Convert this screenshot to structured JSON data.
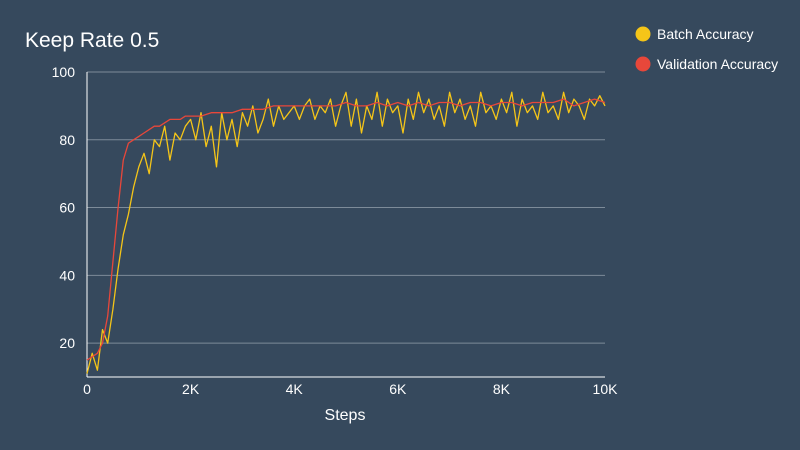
{
  "chart_data": {
    "type": "line",
    "title": "Keep Rate 0.5",
    "xlabel": "Steps",
    "ylabel": "",
    "xlim": [
      0,
      10000
    ],
    "ylim": [
      10,
      100
    ],
    "x_ticks": [
      {
        "value": 0,
        "label": "0"
      },
      {
        "value": 2000,
        "label": "2K"
      },
      {
        "value": 4000,
        "label": "4K"
      },
      {
        "value": 6000,
        "label": "6K"
      },
      {
        "value": 8000,
        "label": "8K"
      },
      {
        "value": 10000,
        "label": "10K"
      }
    ],
    "y_ticks": [
      {
        "value": 20,
        "label": "20"
      },
      {
        "value": 40,
        "label": "40"
      },
      {
        "value": 60,
        "label": "60"
      },
      {
        "value": 80,
        "label": "80"
      },
      {
        "value": 100,
        "label": "100"
      }
    ],
    "grid": "horizontal",
    "legend_position": "top-right",
    "series": [
      {
        "name": "Batch Accuracy",
        "color": "#f5c518",
        "x": [
          0,
          100,
          200,
          300,
          400,
          500,
          600,
          700,
          800,
          900,
          1000,
          1100,
          1200,
          1300,
          1400,
          1500,
          1600,
          1700,
          1800,
          1900,
          2000,
          2100,
          2200,
          2300,
          2400,
          2500,
          2600,
          2700,
          2800,
          2900,
          3000,
          3100,
          3200,
          3300,
          3400,
          3500,
          3600,
          3700,
          3800,
          3900,
          4000,
          4100,
          4200,
          4300,
          4400,
          4500,
          4600,
          4700,
          4800,
          4900,
          5000,
          5100,
          5200,
          5300,
          5400,
          5500,
          5600,
          5700,
          5800,
          5900,
          6000,
          6100,
          6200,
          6300,
          6400,
          6500,
          6600,
          6700,
          6800,
          6900,
          7000,
          7100,
          7200,
          7300,
          7400,
          7500,
          7600,
          7700,
          7800,
          7900,
          8000,
          8100,
          8200,
          8300,
          8400,
          8500,
          8600,
          8700,
          8800,
          8900,
          9000,
          9100,
          9200,
          9300,
          9400,
          9500,
          9600,
          9700,
          9800,
          9900,
          10000
        ],
        "y": [
          11,
          17,
          12,
          24,
          20,
          30,
          42,
          52,
          58,
          66,
          72,
          76,
          70,
          80,
          78,
          84,
          74,
          82,
          80,
          84,
          86,
          80,
          88,
          78,
          84,
          72,
          88,
          80,
          86,
          78,
          88,
          84,
          90,
          82,
          86,
          92,
          84,
          90,
          86,
          88,
          90,
          86,
          90,
          92,
          86,
          90,
          88,
          92,
          84,
          90,
          94,
          84,
          92,
          82,
          90,
          86,
          94,
          84,
          92,
          88,
          90,
          82,
          92,
          86,
          94,
          88,
          92,
          86,
          90,
          84,
          94,
          88,
          92,
          86,
          90,
          84,
          94,
          88,
          90,
          86,
          92,
          88,
          94,
          84,
          92,
          88,
          90,
          86,
          94,
          88,
          90,
          86,
          94,
          88,
          92,
          90,
          86,
          92,
          90,
          93,
          90
        ],
        "values_note_hidden": null
      },
      {
        "name": "Validation Accuracy",
        "color": "#e8473a",
        "x": [
          0,
          100,
          200,
          300,
          400,
          500,
          600,
          700,
          800,
          900,
          1000,
          1100,
          1200,
          1300,
          1400,
          1500,
          1600,
          1700,
          1800,
          1900,
          2000,
          2200,
          2400,
          2600,
          2800,
          3000,
          3200,
          3400,
          3600,
          3800,
          4000,
          4200,
          4400,
          4600,
          4800,
          5000,
          5200,
          5400,
          5600,
          5800,
          6000,
          6200,
          6400,
          6600,
          6800,
          7000,
          7200,
          7400,
          7600,
          7800,
          8000,
          8200,
          8400,
          8600,
          8800,
          9000,
          9200,
          9400,
          9600,
          9800,
          10000
        ],
        "y": [
          15,
          16,
          17,
          20,
          28,
          44,
          60,
          74,
          79,
          80,
          81,
          82,
          83,
          84,
          84,
          85,
          86,
          86,
          86,
          87,
          87,
          87,
          88,
          88,
          88,
          89,
          89,
          89,
          90,
          90,
          90,
          90,
          90,
          90,
          90,
          91,
          90,
          90,
          91,
          90,
          91,
          90,
          91,
          90,
          91,
          91,
          90,
          91,
          91,
          90,
          91,
          91,
          90,
          91,
          91,
          91,
          92,
          90,
          91,
          92,
          91
        ]
      }
    ]
  }
}
